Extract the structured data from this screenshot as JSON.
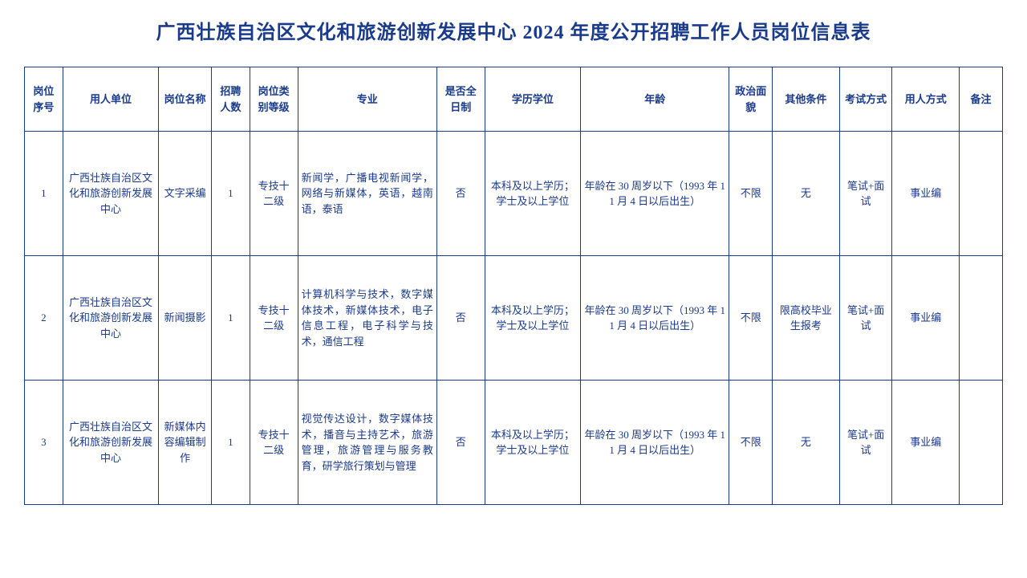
{
  "title": "广西壮族自治区文化和旅游创新发展中心 2024 年度公开招聘工作人员岗位信息表",
  "text_color": "#1a3a8a",
  "border_color": "#1a3a8a",
  "background_color": "#ffffff",
  "title_fontsize": 24,
  "cell_fontsize": 13,
  "columns": [
    "岗位序号",
    "用人单位",
    "岗位名称",
    "招聘人数",
    "岗位类别等级",
    "专业",
    "是否全日制",
    "学历学位",
    "年龄",
    "政治面貌",
    "其他条件",
    "考试方式",
    "用人方式",
    "备注"
  ],
  "rows": [
    {
      "seq": "1",
      "unit": "广西壮族自治区文化和旅游创新发展中心",
      "posname": "文字采编",
      "count": "1",
      "level": "专技十二级",
      "major": "新闻学，广播电视新闻学，网络与新媒体，英语，越南语，泰语",
      "fulltime": "否",
      "edu": "本科及以上学历；学士及以上学位",
      "age": "年龄在 30 周岁以下（1993 年 11 月 4 日以后出生）",
      "political": "不限",
      "other": "无",
      "exam": "笔试+面试",
      "hire": "事业编",
      "note": ""
    },
    {
      "seq": "2",
      "unit": "广西壮族自治区文化和旅游创新发展中心",
      "posname": "新闻摄影",
      "count": "1",
      "level": "专技十二级",
      "major": "计算机科学与技术，数字媒体技术，新媒体技术，电子信息工程，电子科学与技术，通信工程",
      "fulltime": "否",
      "edu": "本科及以上学历；学士及以上学位",
      "age": "年龄在 30 周岁以下（1993 年 11 月 4 日以后出生）",
      "political": "不限",
      "other": "限高校毕业生报考",
      "exam": "笔试+面试",
      "hire": "事业编",
      "note": ""
    },
    {
      "seq": "3",
      "unit": "广西壮族自治区文化和旅游创新发展中心",
      "posname": "新媒体内容编辑制作",
      "count": "1",
      "level": "专技十二级",
      "major": "视觉传达设计，数字媒体技术，播音与主持艺术，旅游管理，旅游管理与服务教育，研学旅行策划与管理",
      "fulltime": "否",
      "edu": "本科及以上学历；学士及以上学位",
      "age": "年龄在 30 周岁以下（1993 年 11 月 4 日以后出生）",
      "political": "不限",
      "other": "无",
      "exam": "笔试+面试",
      "hire": "事业编",
      "note": ""
    }
  ]
}
